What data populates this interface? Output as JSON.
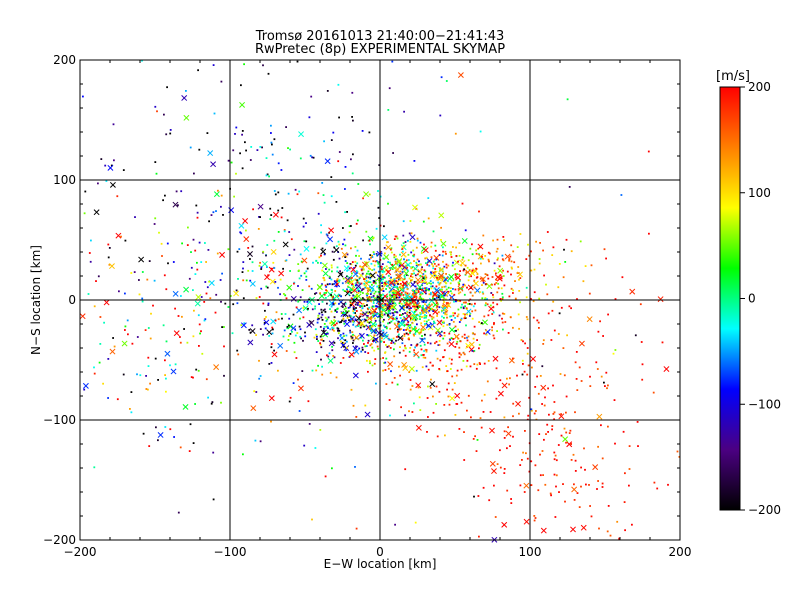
{
  "header": {
    "line1": "Tromsø 20161013 21:40:00−21:41:43",
    "line2": "RwPretec (8p) EXPERIMENTAL SKYMAP"
  },
  "colors": {
    "axes": "#000000",
    "scale": [
      "#000000",
      "#4b0082",
      "#0000ff",
      "#00ffff",
      "#00ff00",
      "#ffff00",
      "#ff7f00",
      "#ff0000"
    ]
  },
  "chart_data": {
    "type": "scatter",
    "xlabel": "E−W location [km]",
    "ylabel": "N−S location [km]",
    "xlim": [
      -200,
      200
    ],
    "ylim": [
      -200,
      200
    ],
    "xticks": [
      -200,
      -100,
      0,
      100,
      200
    ],
    "yticks": [
      -200,
      -100,
      0,
      100,
      200
    ],
    "xtick_labels": [
      "−200",
      "−100",
      "0",
      "100",
      "200"
    ],
    "ytick_labels": [
      "−200",
      "−100",
      "0",
      "100",
      "200"
    ],
    "grid": true,
    "colorbar": {
      "title": "[m/s]",
      "range": [
        -200,
        200
      ],
      "ticks": [
        -200,
        -100,
        0,
        100,
        200
      ],
      "tick_labels": [
        "−200",
        "−100",
        "0",
        "100",
        "200"
      ],
      "colormap": "black-purple-blue-cyan-green-yellow-red"
    },
    "marker_styles": [
      "dot",
      "cross"
    ],
    "approx_point_count": 3000,
    "clusters": [
      {
        "center": [
          8,
          3
        ],
        "spread": [
          28,
          22
        ],
        "count": 1300,
        "velocity_mean": 20,
        "velocity_spread": 110
      },
      {
        "center": [
          60,
          22
        ],
        "spread": [
          35,
          18
        ],
        "count": 300,
        "velocity_mean": 150,
        "velocity_spread": 50
      },
      {
        "center": [
          40,
          -45
        ],
        "spread": [
          40,
          25
        ],
        "count": 280,
        "velocity_mean": 160,
        "velocity_spread": 60
      },
      {
        "center": [
          -25,
          -20
        ],
        "spread": [
          30,
          15
        ],
        "count": 220,
        "velocity_mean": -120,
        "velocity_spread": 90
      },
      {
        "center": [
          -55,
          30
        ],
        "spread": [
          40,
          40
        ],
        "count": 180,
        "velocity_mean": 0,
        "velocity_spread": 180
      },
      {
        "center": [
          -140,
          -20
        ],
        "spread": [
          45,
          60
        ],
        "count": 220,
        "velocity_mean": 20,
        "velocity_spread": 180
      },
      {
        "center": [
          115,
          -125
        ],
        "spread": [
          35,
          50
        ],
        "count": 230,
        "velocity_mean": 190,
        "velocity_spread": 25
      },
      {
        "center": [
          -90,
          120
        ],
        "spread": [
          60,
          50
        ],
        "count": 150,
        "velocity_mean": -140,
        "velocity_spread": 90
      },
      {
        "center": [
          0,
          0
        ],
        "spread": [
          120,
          110
        ],
        "count": 120,
        "velocity_mean": 50,
        "velocity_spread": 180
      }
    ]
  }
}
